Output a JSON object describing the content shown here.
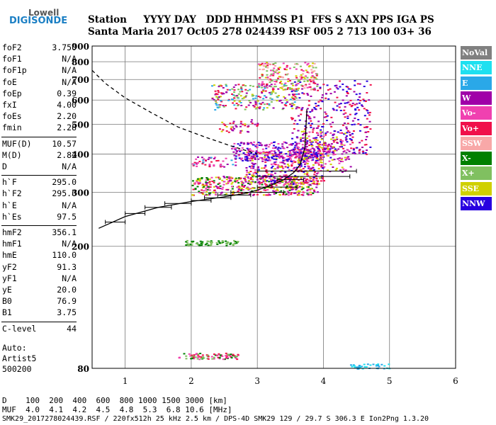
{
  "logo": {
    "brand": "Lowell",
    "product": "DIGISONDE"
  },
  "header": {
    "line1": "Station     YYYY DAY   DDD HHMMSS P1  FFS S AXN PPS IGA PS",
    "line2": "Santa Maria 2017 Oct05 278 024439 RSF 005 2 713 100 03+ 36"
  },
  "params_group1": [
    {
      "key": "foF2",
      "value": "3.750"
    },
    {
      "key": "foF1",
      "value": "N/A"
    },
    {
      "key": "foF1p",
      "value": "N/A"
    },
    {
      "key": "foE",
      "value": "N/A"
    },
    {
      "key": "foEp",
      "value": "0.39"
    },
    {
      "key": "fxI",
      "value": "4.00"
    },
    {
      "key": "foEs",
      "value": "2.20"
    },
    {
      "key": "fmin",
      "value": "2.28"
    }
  ],
  "params_group2": [
    {
      "key": "MUF(D)",
      "value": "10.57"
    },
    {
      "key": "M(D)",
      "value": "2.82"
    },
    {
      "key": "D",
      "value": "N/A"
    }
  ],
  "params_group3": [
    {
      "key": "h`F",
      "value": "295.0"
    },
    {
      "key": "h`F2",
      "value": "295.0"
    },
    {
      "key": "h`E",
      "value": "N/A"
    },
    {
      "key": "h`Es",
      "value": "97.5"
    }
  ],
  "params_group4": [
    {
      "key": "hmF2",
      "value": "356.1"
    },
    {
      "key": "hmF1",
      "value": "N/A"
    },
    {
      "key": "hmE",
      "value": "110.0"
    },
    {
      "key": "yF2",
      "value": "91.3"
    },
    {
      "key": "yF1",
      "value": "N/A"
    },
    {
      "key": "yE",
      "value": "20.0"
    },
    {
      "key": "B0",
      "value": "76.9"
    },
    {
      "key": "B1",
      "value": "3.75"
    }
  ],
  "params_group5": [
    {
      "key": "C-level",
      "value": "44"
    }
  ],
  "auto": {
    "line1": "Auto:",
    "line2": "Artist5",
    "line3": "500200"
  },
  "legend": [
    {
      "label": "NoVal",
      "color": "#808080"
    },
    {
      "label": "NNE",
      "color": "#1ee0f0"
    },
    {
      "label": "E",
      "color": "#2aa8e8"
    },
    {
      "label": "W",
      "color": "#a000a8"
    },
    {
      "label": "Vo-",
      "color": "#f040b0"
    },
    {
      "label": "Vo+",
      "color": "#f0104a"
    },
    {
      "label": "SSW",
      "color": "#f8a8a8"
    },
    {
      "label": "X-",
      "color": "#008000"
    },
    {
      "label": "X+",
      "color": "#80c060"
    },
    {
      "label": "SSE",
      "color": "#d0d000"
    },
    {
      "label": "NNW",
      "color": "#2800e0"
    }
  ],
  "bottom": {
    "line1": "D    100  200  400  600  800 1000 1500 3000 [km]",
    "line2": "MUF  4.0  4.1  4.2  4.5  4.8  5.3  6.8 10.6 [MHz]",
    "line3": "SMK29_2017278024439.RSF / 220fx512h 25 kHz 2.5 km / DPS-4D SMK29 129 / 29.7 S 306.3 E Ion2Png 1.3.20"
  },
  "chart_data": {
    "type": "scatter",
    "xlim": [
      0.5,
      6
    ],
    "ylim": [
      80,
      900
    ],
    "y_scale": "log",
    "x_ticks": [
      1,
      2,
      3,
      4,
      5,
      6
    ],
    "x_tick_labels": [
      "1",
      "2",
      "3",
      "4",
      "5",
      "6"
    ],
    "y_ticks": [
      80,
      200,
      300,
      400,
      500,
      600,
      700,
      800,
      900
    ],
    "y_tick_labels": [
      "80",
      "200",
      "300",
      "400",
      "500",
      "600",
      "700",
      "800",
      "900"
    ],
    "grid": true,
    "legend_placement": "right",
    "trace_regions": [
      {
        "x": [
          1.8,
          2.7
        ],
        "y": [
          86,
          90
        ],
        "colors": [
          "#008000",
          "#f0104a",
          "#f040b0",
          "#80c060"
        ],
        "n": 90
      },
      {
        "x": [
          1.9,
          2.7
        ],
        "y": [
          202,
          210
        ],
        "colors": [
          "#008000",
          "#80c060"
        ],
        "n": 70
      },
      {
        "x": [
          2.0,
          3.9
        ],
        "y": [
          295,
          340
        ],
        "colors": [
          "#d0d000",
          "#008000",
          "#f0104a",
          "#a000a8",
          "#f040b0"
        ],
        "n": 420
      },
      {
        "x": [
          2.8,
          4.0
        ],
        "y": [
          320,
          410
        ],
        "colors": [
          "#f040b0",
          "#a000a8",
          "#f0104a",
          "#d0d000",
          "#2800e0"
        ],
        "n": 380
      },
      {
        "x": [
          2.6,
          4.1
        ],
        "y": [
          380,
          440
        ],
        "colors": [
          "#2800e0",
          "#a000a8",
          "#f040b0"
        ],
        "n": 260
      },
      {
        "x": [
          3.5,
          4.7
        ],
        "y": [
          400,
          700
        ],
        "colors": [
          "#2800e0",
          "#a000a8",
          "#f0104a"
        ],
        "n": 340
      },
      {
        "x": [
          3.6,
          4.4
        ],
        "y": [
          350,
          480
        ],
        "colors": [
          "#f040b0",
          "#d0d000",
          "#a000a8"
        ],
        "n": 160
      },
      {
        "x": [
          2.3,
          3.6
        ],
        "y": [
          560,
          680
        ],
        "colors": [
          "#f0104a",
          "#a000a8",
          "#d0d000",
          "#2aa8e8",
          "#80c060"
        ],
        "n": 220
      },
      {
        "x": [
          3.0,
          3.9
        ],
        "y": [
          650,
          800
        ],
        "colors": [
          "#f040b0",
          "#f0104a",
          "#d0d000",
          "#f8a8a8",
          "#80c060"
        ],
        "n": 200
      },
      {
        "x": [
          2.4,
          3.0
        ],
        "y": [
          470,
          520
        ],
        "colors": [
          "#f0104a",
          "#d0d000",
          "#a000a8"
        ],
        "n": 40
      },
      {
        "x": [
          2.0,
          2.7
        ],
        "y": [
          365,
          395
        ],
        "colors": [
          "#f0104a",
          "#f040b0",
          "#a000a8",
          "#2aa8e8"
        ],
        "n": 50
      },
      {
        "x": [
          4.4,
          5.0
        ],
        "y": [
          80,
          83
        ],
        "colors": [
          "#2aa8e8",
          "#1ee0f0"
        ],
        "n": 40
      }
    ],
    "profile_curve": {
      "x": [
        0.6,
        1.0,
        1.5,
        2.0,
        2.5,
        2.8,
        3.0,
        3.2,
        3.4,
        3.55,
        3.65,
        3.72,
        3.75
      ],
      "y": [
        229,
        250,
        268,
        280,
        290,
        297,
        305,
        316,
        330,
        348,
        370,
        420,
        560
      ]
    },
    "dashed_curve": {
      "x": [
        0.5,
        0.7,
        1.0,
        1.4,
        1.8,
        2.2,
        2.6,
        3.0
      ],
      "y": [
        750,
        680,
        610,
        545,
        490,
        455,
        425,
        400
      ]
    },
    "error_bars": [
      {
        "y": 240,
        "x0": 0.7,
        "x1": 1.0
      },
      {
        "y": 256,
        "x0": 1.0,
        "x1": 1.3
      },
      {
        "y": 268,
        "x0": 1.3,
        "x1": 1.7
      },
      {
        "y": 276,
        "x0": 1.6,
        "x1": 2.0
      },
      {
        "y": 282,
        "x0": 2.0,
        "x1": 2.3
      },
      {
        "y": 288,
        "x0": 2.2,
        "x1": 2.6
      },
      {
        "y": 294,
        "x0": 2.4,
        "x1": 2.9
      },
      {
        "y": 300,
        "x0": 2.6,
        "x1": 3.4
      },
      {
        "y": 312,
        "x0": 3.0,
        "x1": 3.6
      },
      {
        "y": 330,
        "x0": 3.3,
        "x1": 3.7
      },
      {
        "y": 338,
        "x0": 3.0,
        "x1": 4.4
      },
      {
        "y": 352,
        "x0": 3.0,
        "x1": 4.5
      }
    ]
  }
}
